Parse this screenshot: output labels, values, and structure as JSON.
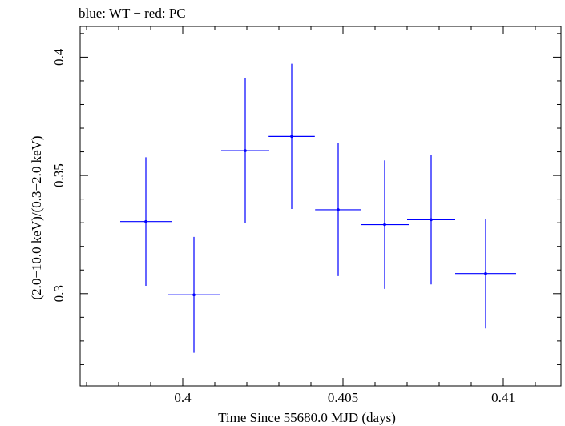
{
  "chart_data": {
    "type": "scatter",
    "title": "blue: WT − red: PC",
    "xlabel": "Time Since 55680.0 MJD (days)",
    "ylabel": "(2.0−10.0 keV)/(0.3−2.0 keV)",
    "xlim": [
      0.3968,
      0.4118
    ],
    "ylim": [
      0.261,
      0.413
    ],
    "x_ticks": [
      {
        "value": 0.4,
        "label": "0.4"
      },
      {
        "value": 0.405,
        "label": "0.405"
      },
      {
        "value": 0.41,
        "label": "0.41"
      }
    ],
    "y_ticks": [
      {
        "value": 0.3,
        "label": "0.3"
      },
      {
        "value": 0.35,
        "label": "0.35"
      },
      {
        "value": 0.4,
        "label": "0.4"
      }
    ],
    "series": [
      {
        "name": "WT",
        "color": "#0000ff",
        "points": [
          {
            "x": 0.39885,
            "xerr": 0.0008,
            "y": 0.3305,
            "yerr": 0.0272
          },
          {
            "x": 0.40035,
            "xerr": 0.0008,
            "y": 0.2995,
            "yerr": 0.0245
          },
          {
            "x": 0.40195,
            "xerr": 0.00075,
            "y": 0.3605,
            "yerr": 0.0307
          },
          {
            "x": 0.4034,
            "xerr": 0.00072,
            "y": 0.3665,
            "yerr": 0.0307
          },
          {
            "x": 0.40485,
            "xerr": 0.00072,
            "y": 0.3355,
            "yerr": 0.0281
          },
          {
            "x": 0.4063,
            "xerr": 0.00075,
            "y": 0.3292,
            "yerr": 0.0272
          },
          {
            "x": 0.40775,
            "xerr": 0.00075,
            "y": 0.3313,
            "yerr": 0.0274
          },
          {
            "x": 0.40945,
            "xerr": 0.00095,
            "y": 0.3085,
            "yerr": 0.0232
          }
        ]
      }
    ]
  }
}
